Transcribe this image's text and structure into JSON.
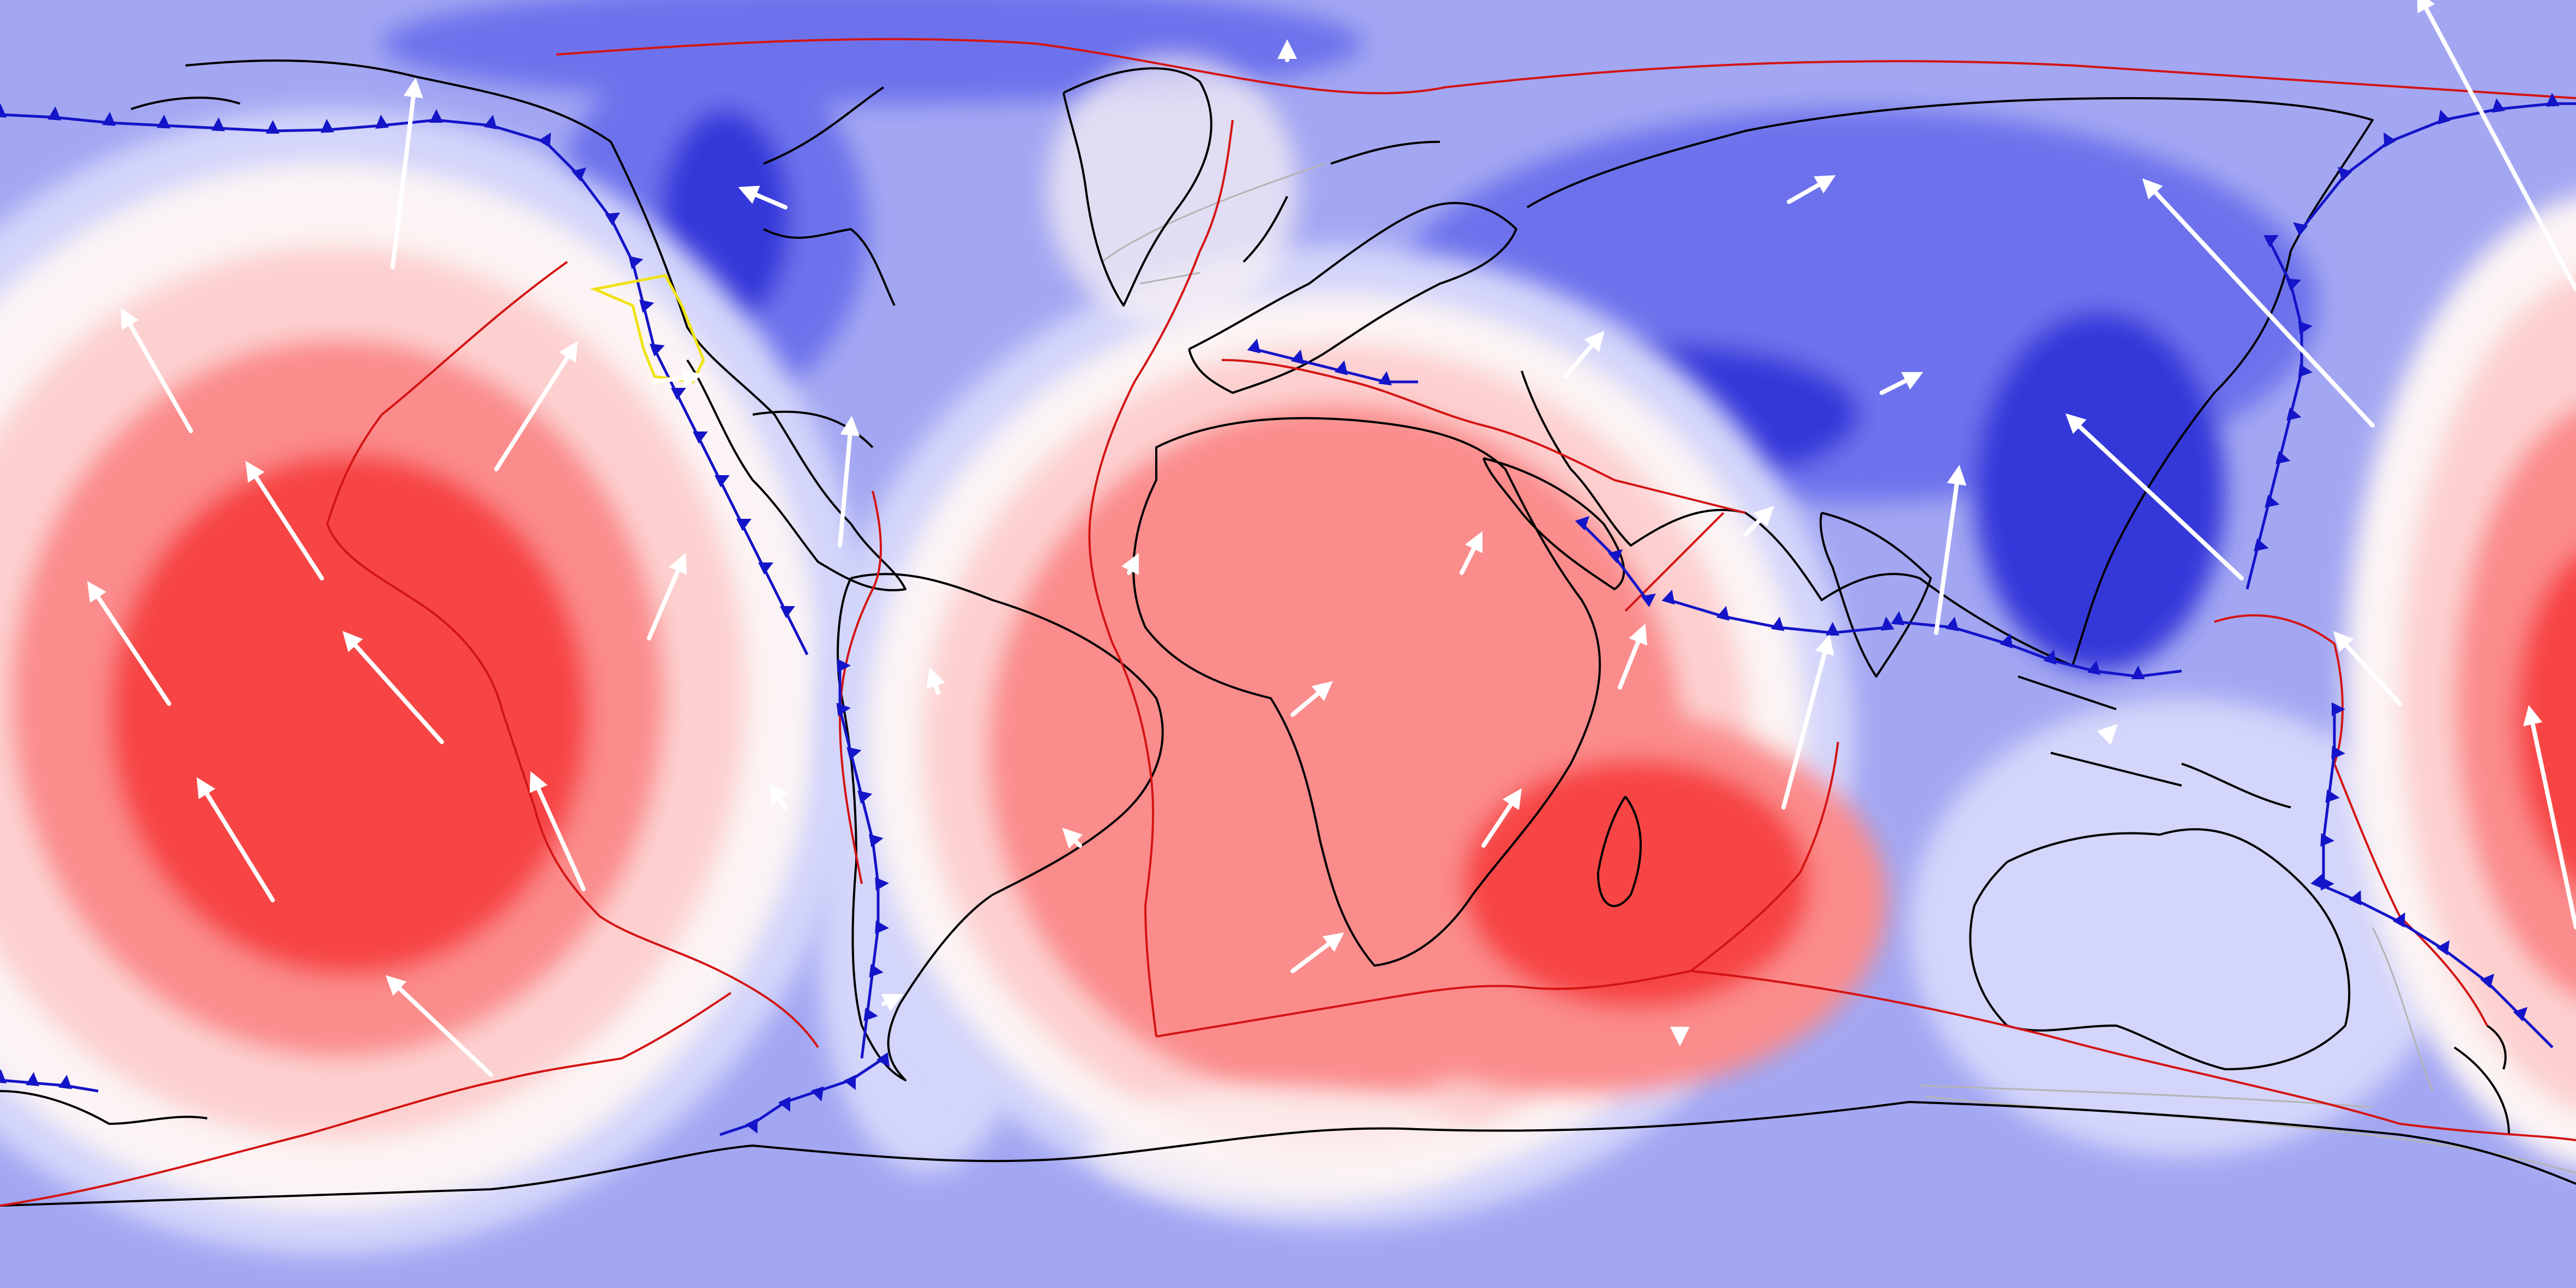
{
  "map": {
    "projection": "plate-carree",
    "field_palette": {
      "strong_positive": "#f74545",
      "positive_mid": "#fb8c8c",
      "positive_light": "#fdd0d0",
      "neutral": "#fcf4f4",
      "negative_light": "#d3d5fa",
      "negative_mid": "#a3a7f2",
      "negative_strong": "#6d72ec",
      "negative_deep": "#3539d9"
    },
    "line_colors": {
      "coastline": "#000000",
      "plate_boundary": "#d41414",
      "subduction_zone": "#1414c8",
      "motion_arrow": "#ffffff",
      "highlight_block": "#f0e214",
      "ice_shelf_outline": "#b4b4b4"
    },
    "positive_anomalies": [
      "pacific-superswell",
      "african-superswell"
    ],
    "negative_anomalies": [
      "north-america-low",
      "eurasia-low",
      "pacific-rim-low"
    ],
    "motion_arrow_count": 37,
    "map_text": []
  }
}
